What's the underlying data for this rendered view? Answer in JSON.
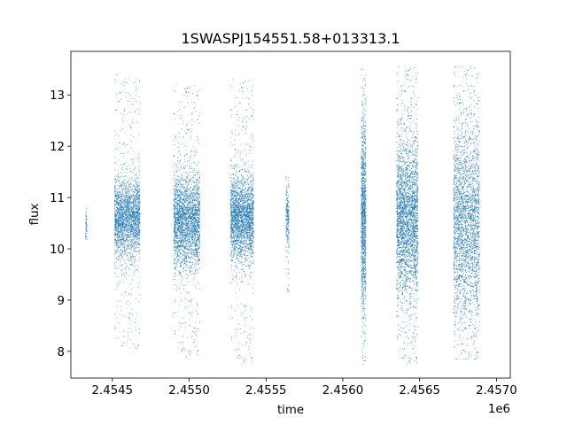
{
  "chart_data": {
    "type": "scatter",
    "title": "1SWASPJ154551.58+013313.1",
    "xlabel": "time",
    "ylabel": "flux",
    "x_offset_label": "1e6",
    "xlim": [
      2454230,
      2457090
    ],
    "ylim": [
      7.48,
      13.85
    ],
    "x_ticks": [
      2454500,
      2455000,
      2455500,
      2456000,
      2456500,
      2457000
    ],
    "x_tick_labels": [
      "2.4545",
      "2.4550",
      "2.4555",
      "2.4560",
      "2.4565",
      "2.4570"
    ],
    "y_ticks": [
      8,
      9,
      10,
      11,
      12,
      13
    ],
    "y_tick_labels": [
      "8",
      "9",
      "10",
      "11",
      "12",
      "13"
    ],
    "grid": false,
    "marker_color": "#1f77b4",
    "series": [
      {
        "clusters": [
          {
            "x_start": 2454325,
            "x_end": 2454335,
            "center": 10.45,
            "spread": 0.18,
            "min": 10.05,
            "max": 10.8,
            "count": 60
          },
          {
            "x_start": 2454515,
            "x_end": 2454680,
            "center": 10.6,
            "spread": 0.38,
            "min": 8.0,
            "max": 13.4,
            "count": 2600
          },
          {
            "x_start": 2454900,
            "x_end": 2455070,
            "center": 10.55,
            "spread": 0.45,
            "min": 7.9,
            "max": 13.2,
            "count": 3200
          },
          {
            "x_start": 2455270,
            "x_end": 2455420,
            "center": 10.6,
            "spread": 0.4,
            "min": 7.75,
            "max": 13.3,
            "count": 2800
          },
          {
            "x_start": 2455630,
            "x_end": 2455650,
            "center": 10.6,
            "spread": 0.3,
            "min": 9.15,
            "max": 11.4,
            "count": 250
          },
          {
            "x_start": 2456120,
            "x_end": 2456150,
            "center": 10.6,
            "spread": 0.9,
            "min": 7.75,
            "max": 13.5,
            "count": 1400
          },
          {
            "x_start": 2456350,
            "x_end": 2456490,
            "center": 10.6,
            "spread": 0.75,
            "min": 7.75,
            "max": 13.55,
            "count": 3800
          },
          {
            "x_start": 2456720,
            "x_end": 2456890,
            "center": 10.5,
            "spread": 0.95,
            "min": 7.85,
            "max": 13.55,
            "count": 3400
          }
        ]
      }
    ]
  }
}
